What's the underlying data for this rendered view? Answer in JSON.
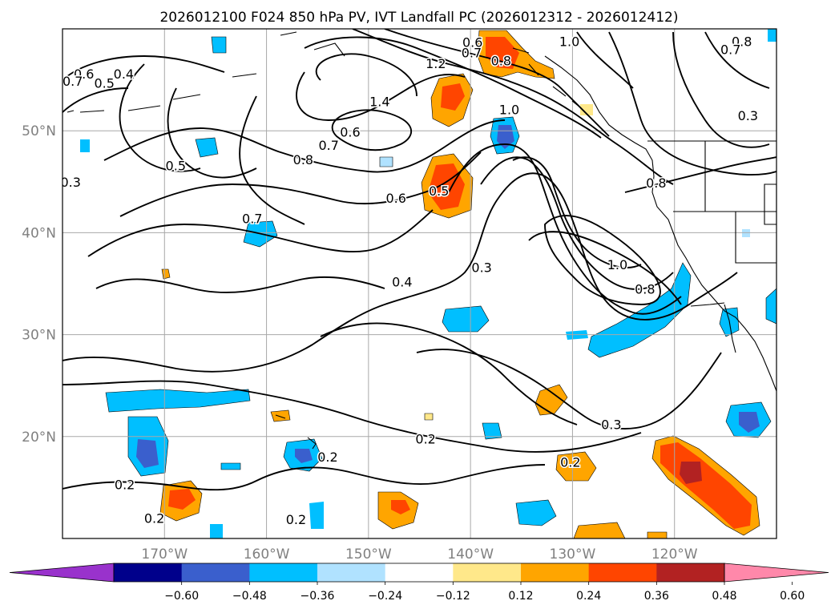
{
  "title": "2026012100 F024 850 hPa PV, IVT Landfall PC (2026012312 - 2026012412)",
  "map": {
    "lon_range": [
      -180,
      -110
    ],
    "lat_range": [
      10,
      60
    ],
    "lon_ticks": [
      {
        "lon": -170,
        "label": "170°W"
      },
      {
        "lon": -160,
        "label": "160°W"
      },
      {
        "lon": -150,
        "label": "150°W"
      },
      {
        "lon": -140,
        "label": "140°W"
      },
      {
        "lon": -130,
        "label": "130°W"
      },
      {
        "lon": -120,
        "label": "120°W"
      }
    ],
    "lat_ticks": [
      {
        "lat": 20,
        "label": "20°N"
      },
      {
        "lat": 30,
        "label": "30°N"
      },
      {
        "lat": 40,
        "label": "40°N"
      },
      {
        "lat": 50,
        "label": "50°N"
      }
    ],
    "grid": true
  },
  "colorbar": {
    "ticks": [
      "−0.60",
      "−0.48",
      "−0.36",
      "−0.24",
      "−0.12",
      "0.12",
      "0.24",
      "0.36",
      "0.48",
      "0.60"
    ],
    "colors": [
      "#9932cc",
      "#00008b",
      "#3a5fcd",
      "#00bfff",
      "#b0e2ff",
      "#ffffff",
      "#ffe88a",
      "#ffa500",
      "#ff4500",
      "#b22222",
      "#ff88aa"
    ],
    "extend": "both"
  },
  "contour_labels": [
    {
      "text": "0.6",
      "lon": -139.8,
      "lat": 58.7
    },
    {
      "text": "0.7",
      "lon": -139.9,
      "lat": 57.7
    },
    {
      "text": "0.8",
      "lon": -137.0,
      "lat": 56.9
    },
    {
      "text": "1.0",
      "lon": -130.3,
      "lat": 58.8
    },
    {
      "text": "1.2",
      "lon": -143.4,
      "lat": 56.6
    },
    {
      "text": "1.4",
      "lon": -148.9,
      "lat": 52.9
    },
    {
      "text": "1.0",
      "lon": -136.2,
      "lat": 52.1
    },
    {
      "text": "0.6",
      "lon": -151.8,
      "lat": 49.9
    },
    {
      "text": "0.7",
      "lon": -153.9,
      "lat": 48.6
    },
    {
      "text": "0.8",
      "lon": -156.4,
      "lat": 47.2
    },
    {
      "text": "0.5",
      "lon": -168.9,
      "lat": 46.6
    },
    {
      "text": "0.6",
      "lon": -147.3,
      "lat": 43.4
    },
    {
      "text": "0.5",
      "lon": -143.1,
      "lat": 44.1
    },
    {
      "text": "0.7",
      "lon": -161.4,
      "lat": 41.4
    },
    {
      "text": "0.4",
      "lon": -174.0,
      "lat": 55.6
    },
    {
      "text": "0.5",
      "lon": -175.9,
      "lat": 54.7
    },
    {
      "text": "0.6",
      "lon": -177.9,
      "lat": 55.6
    },
    {
      "text": "0.7",
      "lon": -179.0,
      "lat": 54.9
    },
    {
      "text": "0.4",
      "lon": -146.7,
      "lat": 35.2
    },
    {
      "text": "0.3",
      "lon": -138.9,
      "lat": 36.6
    },
    {
      "text": "1.0",
      "lon": -125.6,
      "lat": 36.9
    },
    {
      "text": "0.8",
      "lon": -122.9,
      "lat": 34.5
    },
    {
      "text": "0.8",
      "lon": -121.8,
      "lat": 44.9
    },
    {
      "text": "0.8",
      "lon": -113.4,
      "lat": 58.8
    },
    {
      "text": "0.7",
      "lon": -114.5,
      "lat": 58.0
    },
    {
      "text": "0.3",
      "lon": -112.8,
      "lat": 51.5
    },
    {
      "text": "0.3",
      "lon": -179.2,
      "lat": 45.0
    },
    {
      "text": "0.3",
      "lon": -126.2,
      "lat": 21.2
    },
    {
      "text": "0.2",
      "lon": -130.2,
      "lat": 17.5
    },
    {
      "text": "0.2",
      "lon": -144.4,
      "lat": 19.8
    },
    {
      "text": "0.2",
      "lon": -173.9,
      "lat": 15.3
    },
    {
      "text": "0.2",
      "lon": -171.0,
      "lat": 12.0
    },
    {
      "text": "0.2",
      "lon": -154.0,
      "lat": 18.0
    },
    {
      "text": "0.2",
      "lon": -157.1,
      "lat": 11.9
    }
  ]
}
